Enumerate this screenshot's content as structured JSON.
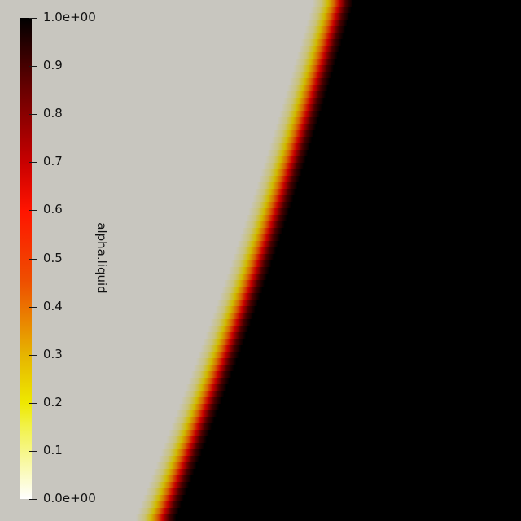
{
  "field": {
    "name": "alpha.liquid",
    "colormap": [
      "#ffffff",
      "#eef000",
      "#e8a000",
      "#ff2a00",
      "#c80000",
      "#600000",
      "#000000"
    ],
    "background": "#c8c6bf",
    "range": [
      0,
      1
    ]
  },
  "colorbar": {
    "title": "alpha.liquid",
    "ticks": [
      {
        "value": 1.0,
        "label": "1.0e+00"
      },
      {
        "value": 0.9,
        "label": "0.9"
      },
      {
        "value": 0.8,
        "label": "0.8"
      },
      {
        "value": 0.7,
        "label": "0.7"
      },
      {
        "value": 0.6,
        "label": "0.6"
      },
      {
        "value": 0.5,
        "label": "0.5"
      },
      {
        "value": 0.4,
        "label": "0.4"
      },
      {
        "value": 0.3,
        "label": "0.3"
      },
      {
        "value": 0.2,
        "label": "0.2"
      },
      {
        "value": 0.1,
        "label": "0.1"
      },
      {
        "value": 0.0,
        "label": "0.0e+00"
      }
    ]
  }
}
